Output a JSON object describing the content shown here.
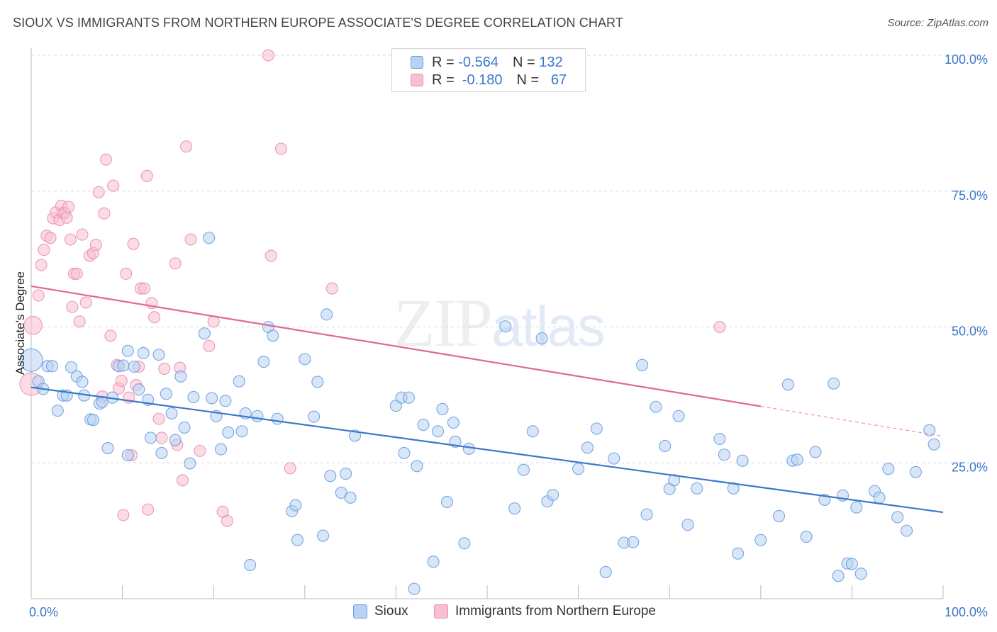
{
  "title": "SIOUX VS IMMIGRANTS FROM NORTHERN EUROPE ASSOCIATE'S DEGREE CORRELATION CHART",
  "source": "Source: ZipAtlas.com",
  "watermark": {
    "zip": "ZIP",
    "atlas": "atlas"
  },
  "colors": {
    "blue": "#3b78c9",
    "blue_fill": "#b8d2f2",
    "blue_stroke": "#6a9fe0",
    "pink": "#e06891",
    "pink_fill": "#f7bfd0",
    "pink_stroke": "#ea8fae",
    "grid": "#d8d8d8",
    "axis": "#bbbbbb"
  },
  "legend": {
    "rows": [
      {
        "r_label": "R = ",
        "r_value": "-0.564",
        "n_label": "N = ",
        "n_value": "132"
      },
      {
        "r_label": "R = ",
        "r_value": " -0.180",
        "n_label": "N = ",
        "n_value": "  67"
      }
    ]
  },
  "bottom_legend": [
    "Sioux",
    "Immigrants from Northern Europe"
  ],
  "chart_data": {
    "type": "scatter",
    "title": "SIOUX VS IMMIGRANTS FROM NORTHERN EUROPE ASSOCIATE'S DEGREE CORRELATION CHART",
    "xlabel": "",
    "ylabel": "Associate's Degree",
    "xlim": [
      0,
      100
    ],
    "ylim": [
      0,
      100
    ],
    "x_ticks": [
      "0.0%",
      "100.0%"
    ],
    "y_ticks": [
      {
        "value": 25,
        "label": "25.0%"
      },
      {
        "value": 50,
        "label": "50.0%"
      },
      {
        "value": 75,
        "label": "75.0%"
      },
      {
        "value": 100,
        "label": "100.0%"
      }
    ],
    "series": [
      {
        "name": "Sioux",
        "r": -0.564,
        "n": 132,
        "trend": {
          "x": [
            0,
            100
          ],
          "y": [
            38.9,
            15.9
          ]
        },
        "points": [
          [
            0.0,
            43.9,
            2
          ],
          [
            0.8,
            40.0,
            1
          ],
          [
            1.3,
            38.6,
            1
          ],
          [
            1.8,
            42.8,
            1
          ],
          [
            2.3,
            42.8,
            1
          ],
          [
            2.9,
            34.6,
            1
          ],
          [
            3.5,
            37.4,
            1
          ],
          [
            3.9,
            37.4,
            1
          ],
          [
            4.4,
            42.6,
            1
          ],
          [
            5.0,
            40.9,
            1
          ],
          [
            5.6,
            39.9,
            1
          ],
          [
            5.8,
            37.4,
            1
          ],
          [
            6.5,
            33.0,
            1
          ],
          [
            6.8,
            32.9,
            1
          ],
          [
            7.5,
            35.9,
            1
          ],
          [
            7.8,
            36.2,
            1
          ],
          [
            8.4,
            27.7,
            1
          ],
          [
            8.9,
            37.0,
            1
          ],
          [
            9.6,
            42.8,
            1
          ],
          [
            10.1,
            42.9,
            1
          ],
          [
            10.6,
            45.6,
            1
          ],
          [
            10.6,
            26.4,
            1
          ],
          [
            11.3,
            42.7,
            1
          ],
          [
            11.8,
            38.5,
            1
          ],
          [
            12.3,
            45.2,
            1
          ],
          [
            12.8,
            36.6,
            1
          ],
          [
            13.1,
            29.6,
            1
          ],
          [
            14.0,
            44.9,
            1
          ],
          [
            14.3,
            26.8,
            1
          ],
          [
            14.8,
            37.7,
            1
          ],
          [
            15.4,
            34.1,
            1
          ],
          [
            15.8,
            29.2,
            1
          ],
          [
            16.4,
            40.9,
            1
          ],
          [
            16.8,
            31.5,
            1
          ],
          [
            17.4,
            24.9,
            1
          ],
          [
            17.8,
            37.1,
            1
          ],
          [
            19.0,
            48.8,
            1
          ],
          [
            19.5,
            66.4,
            1
          ],
          [
            19.8,
            36.9,
            1
          ],
          [
            20.3,
            33.6,
            1
          ],
          [
            20.8,
            27.5,
            1
          ],
          [
            21.3,
            36.4,
            1
          ],
          [
            21.6,
            30.6,
            1
          ],
          [
            22.8,
            40.0,
            1
          ],
          [
            23.1,
            30.8,
            1
          ],
          [
            23.5,
            34.1,
            1
          ],
          [
            24.0,
            6.2,
            1
          ],
          [
            24.8,
            33.6,
            1
          ],
          [
            25.5,
            43.6,
            1
          ],
          [
            26.0,
            50.0,
            1
          ],
          [
            26.5,
            48.4,
            1
          ],
          [
            27.0,
            33.1,
            1
          ],
          [
            28.6,
            16.1,
            1
          ],
          [
            29.0,
            17.2,
            1
          ],
          [
            29.2,
            10.8,
            1
          ],
          [
            30.0,
            44.1,
            1
          ],
          [
            31.0,
            33.5,
            1
          ],
          [
            31.4,
            39.9,
            1
          ],
          [
            32.0,
            11.6,
            1
          ],
          [
            32.4,
            52.3,
            1
          ],
          [
            32.8,
            22.6,
            1
          ],
          [
            34.0,
            19.5,
            1
          ],
          [
            34.5,
            23.0,
            1
          ],
          [
            35.0,
            18.6,
            1
          ],
          [
            35.5,
            30.0,
            1
          ],
          [
            40.0,
            35.5,
            1
          ],
          [
            40.6,
            37.0,
            1
          ],
          [
            40.9,
            26.8,
            1
          ],
          [
            41.4,
            37.0,
            1
          ],
          [
            42.0,
            1.8,
            1
          ],
          [
            42.3,
            24.4,
            1
          ],
          [
            43.0,
            32.0,
            1
          ],
          [
            44.1,
            6.8,
            1
          ],
          [
            44.6,
            30.8,
            1
          ],
          [
            45.1,
            34.9,
            1
          ],
          [
            45.6,
            17.8,
            1
          ],
          [
            46.3,
            32.4,
            1
          ],
          [
            46.5,
            28.9,
            1
          ],
          [
            47.5,
            10.2,
            1
          ],
          [
            48.0,
            27.6,
            1
          ],
          [
            52.0,
            50.1,
            1
          ],
          [
            53.0,
            16.6,
            1
          ],
          [
            54.0,
            23.7,
            1
          ],
          [
            55.0,
            30.8,
            1
          ],
          [
            56.0,
            47.9,
            1
          ],
          [
            56.6,
            17.9,
            1
          ],
          [
            57.2,
            19.1,
            1
          ],
          [
            60.0,
            23.9,
            1
          ],
          [
            61.0,
            27.8,
            1
          ],
          [
            62.0,
            31.3,
            1
          ],
          [
            63.0,
            4.9,
            1
          ],
          [
            63.9,
            25.8,
            1
          ],
          [
            65.0,
            10.3,
            1
          ],
          [
            66.0,
            10.4,
            1
          ],
          [
            67.0,
            43.0,
            1
          ],
          [
            67.5,
            15.5,
            1
          ],
          [
            68.5,
            35.3,
            1
          ],
          [
            69.5,
            28.1,
            1
          ],
          [
            70.0,
            20.2,
            1
          ],
          [
            70.5,
            21.8,
            1
          ],
          [
            71.0,
            33.6,
            1
          ],
          [
            72.0,
            13.6,
            1
          ],
          [
            73.0,
            20.3,
            1
          ],
          [
            75.5,
            29.4,
            1
          ],
          [
            76.0,
            26.5,
            1
          ],
          [
            77.0,
            20.3,
            1
          ],
          [
            77.5,
            8.3,
            1
          ],
          [
            78.0,
            25.4,
            1
          ],
          [
            80.0,
            10.8,
            1
          ],
          [
            82.0,
            15.2,
            1
          ],
          [
            83.0,
            39.4,
            1
          ],
          [
            83.5,
            25.4,
            1
          ],
          [
            84.0,
            25.6,
            1
          ],
          [
            85.0,
            11.4,
            1
          ],
          [
            86.0,
            27.0,
            1
          ],
          [
            87.0,
            18.2,
            1
          ],
          [
            88.0,
            39.6,
            1
          ],
          [
            88.5,
            4.2,
            1
          ],
          [
            89.0,
            19.0,
            1
          ],
          [
            89.5,
            6.5,
            1
          ],
          [
            90.0,
            6.4,
            1
          ],
          [
            90.5,
            16.8,
            1
          ],
          [
            91.0,
            4.6,
            1
          ],
          [
            92.5,
            19.8,
            1
          ],
          [
            93.0,
            18.6,
            1
          ],
          [
            94.0,
            23.9,
            1
          ],
          [
            95.0,
            15.0,
            1
          ],
          [
            96.0,
            12.5,
            1
          ],
          [
            97.0,
            23.3,
            1
          ],
          [
            98.5,
            31.0,
            1
          ],
          [
            99.0,
            28.4,
            1
          ]
        ]
      },
      {
        "name": "Immigrants from Northern Europe",
        "r": -0.18,
        "n": 67,
        "trend": {
          "x": [
            0,
            80
          ],
          "y": [
            57.5,
            35.4
          ]
        },
        "trend_dashed": {
          "x": [
            80,
            100
          ],
          "y": [
            35.4,
            29.9
          ]
        },
        "points": [
          [
            0.0,
            39.5,
            2
          ],
          [
            0.2,
            50.3,
            1.6
          ],
          [
            0.8,
            55.8,
            1
          ],
          [
            1.1,
            61.4,
            1
          ],
          [
            1.4,
            64.2,
            1
          ],
          [
            1.7,
            66.8,
            1
          ],
          [
            2.1,
            66.4,
            1
          ],
          [
            2.4,
            70.0,
            1
          ],
          [
            2.7,
            71.1,
            1
          ],
          [
            3.1,
            69.7,
            1
          ],
          [
            3.3,
            72.3,
            1
          ],
          [
            3.5,
            71.0,
            1
          ],
          [
            3.7,
            71.0,
            1
          ],
          [
            3.9,
            70.1,
            1
          ],
          [
            4.1,
            72.1,
            1
          ],
          [
            4.3,
            66.1,
            1
          ],
          [
            4.5,
            53.7,
            1
          ],
          [
            4.7,
            59.8,
            1
          ],
          [
            5.0,
            59.8,
            1
          ],
          [
            5.3,
            51.0,
            1
          ],
          [
            5.6,
            67.0,
            1
          ],
          [
            6.0,
            54.5,
            1
          ],
          [
            6.4,
            63.1,
            1
          ],
          [
            6.8,
            63.6,
            1
          ],
          [
            7.1,
            65.1,
            1
          ],
          [
            7.4,
            74.8,
            1
          ],
          [
            7.8,
            37.2,
            1
          ],
          [
            8.0,
            70.9,
            1
          ],
          [
            8.2,
            80.8,
            1
          ],
          [
            8.7,
            48.4,
            1
          ],
          [
            9.0,
            76.0,
            1
          ],
          [
            9.4,
            43.0,
            1
          ],
          [
            9.6,
            38.7,
            1
          ],
          [
            9.9,
            40.1,
            1
          ],
          [
            10.1,
            15.4,
            1
          ],
          [
            10.4,
            59.8,
            1
          ],
          [
            10.7,
            37.0,
            1
          ],
          [
            11.0,
            26.4,
            1
          ],
          [
            11.2,
            65.3,
            1
          ],
          [
            11.5,
            39.3,
            1
          ],
          [
            11.8,
            42.7,
            1
          ],
          [
            12.0,
            57.1,
            1
          ],
          [
            12.4,
            57.1,
            1
          ],
          [
            12.7,
            77.8,
            1
          ],
          [
            12.8,
            16.4,
            1
          ],
          [
            13.2,
            54.4,
            1
          ],
          [
            13.5,
            51.8,
            1
          ],
          [
            14.0,
            33.1,
            1
          ],
          [
            14.3,
            29.6,
            1
          ],
          [
            14.6,
            42.3,
            1
          ],
          [
            15.8,
            61.7,
            1
          ],
          [
            16.0,
            28.3,
            1
          ],
          [
            16.3,
            42.5,
            1
          ],
          [
            16.6,
            21.8,
            1
          ],
          [
            17.0,
            83.2,
            1
          ],
          [
            17.5,
            66.1,
            1
          ],
          [
            18.5,
            27.2,
            1
          ],
          [
            19.5,
            46.5,
            1
          ],
          [
            20.0,
            51.0,
            1
          ],
          [
            21.0,
            16.0,
            1
          ],
          [
            21.5,
            14.3,
            1
          ],
          [
            26.0,
            100.0,
            1
          ],
          [
            26.3,
            63.1,
            1
          ],
          [
            27.4,
            82.8,
            1
          ],
          [
            28.4,
            24.0,
            1
          ],
          [
            33.0,
            57.1,
            1
          ],
          [
            75.5,
            50.0,
            1
          ]
        ]
      }
    ]
  }
}
